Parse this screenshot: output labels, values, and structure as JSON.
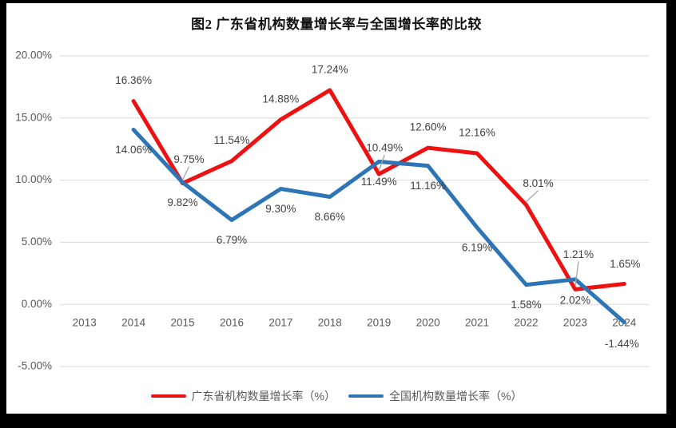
{
  "page": {
    "background": "#000000",
    "card_background": "#ffffff"
  },
  "chart_data": {
    "type": "line",
    "title": "图2 广东省机构数量增长率与全国增长率的比较",
    "categories": [
      "2013",
      "2014",
      "2015",
      "2016",
      "2017",
      "2018",
      "2019",
      "2020",
      "2021",
      "2022",
      "2023",
      "2024"
    ],
    "series": [
      {
        "name": "广东省机构数量增长率（%）",
        "color": "#ee1111",
        "values": [
          null,
          16.36,
          9.75,
          11.54,
          14.88,
          17.24,
          10.49,
          12.6,
          12.16,
          8.01,
          1.21,
          1.65
        ],
        "point_labels": [
          "",
          "16.36%",
          "9.75%",
          "11.54%",
          "14.88%",
          "17.24%",
          "10.49%",
          "12.60%",
          "12.16%",
          "8.01%",
          "1.21%",
          "1.65%"
        ]
      },
      {
        "name": "全国机构数量增长率（%）",
        "color": "#2e75b6",
        "values": [
          null,
          14.06,
          9.82,
          6.79,
          9.3,
          8.66,
          11.49,
          11.16,
          6.19,
          1.58,
          2.02,
          -1.44
        ],
        "point_labels": [
          "",
          "14.06%",
          "9.82%",
          "6.79%",
          "9.30%",
          "8.66%",
          "11.49%",
          "11.16%",
          "6.19%",
          "1.58%",
          "2.02%",
          "-1.44%"
        ]
      }
    ],
    "y_axis": {
      "min": -5,
      "max": 20,
      "step": 5,
      "tick_values": [
        20,
        15,
        10,
        5,
        0,
        -5
      ],
      "tick_labels": [
        "20.00%",
        "15.00%",
        "10.00%",
        "5.00%",
        "0.00%",
        "-5.00%"
      ]
    },
    "grid": true,
    "legend_position": "bottom",
    "colors": {
      "gridline": "#d9d9d9",
      "tick_label": "#595959",
      "data_label": "#404040",
      "leader": "#a6a6a6"
    }
  }
}
